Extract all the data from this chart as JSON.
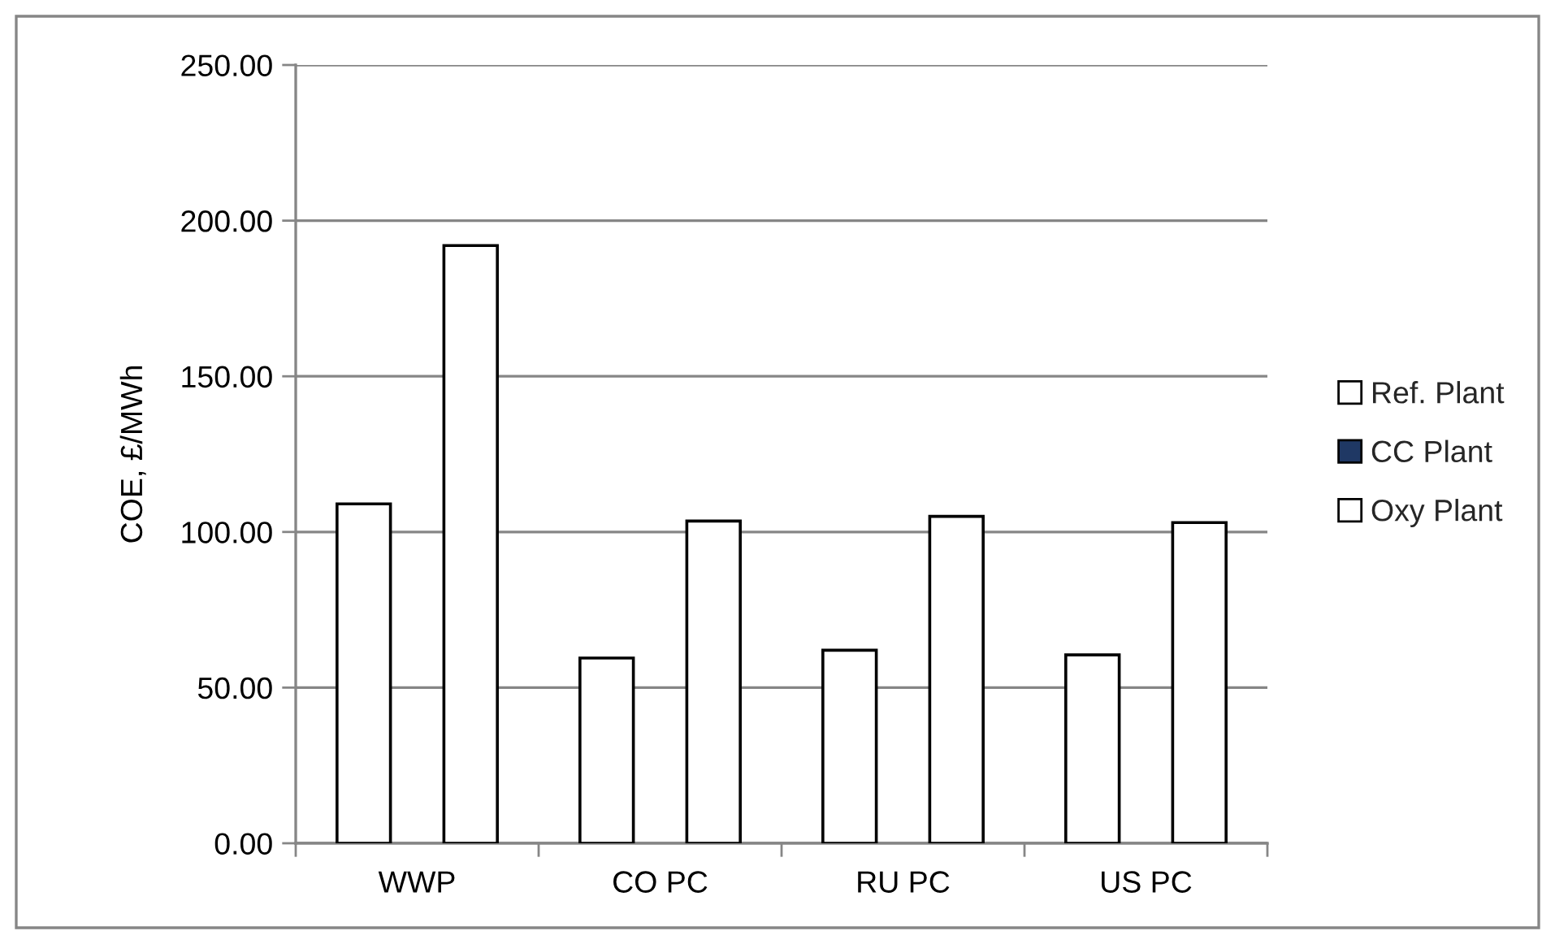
{
  "chart_data": {
    "type": "bar",
    "ylabel": "COE, £/MWh",
    "categories": [
      "WWP",
      "CO PC",
      "RU PC",
      "US PC"
    ],
    "series": [
      {
        "name": "Ref. Plant",
        "color": "#ffffff",
        "values": [
          109,
          59.5,
          62,
          60.5
        ]
      },
      {
        "name": "CC Plant",
        "color": "#1f3864",
        "values": [
          null,
          null,
          null,
          null
        ]
      },
      {
        "name": "Oxy Plant",
        "color": "#ffffff",
        "values": [
          192,
          103.5,
          105,
          103
        ]
      }
    ],
    "ylim": [
      0,
      250
    ],
    "yticks": [
      {
        "value": 0,
        "label": "0.00"
      },
      {
        "value": 50,
        "label": "50.00"
      },
      {
        "value": 100,
        "label": "100.00"
      },
      {
        "value": 150,
        "label": "150.00"
      },
      {
        "value": 200,
        "label": "200.00"
      },
      {
        "value": 250,
        "label": "250.00"
      }
    ],
    "grid": "y",
    "legend": "right"
  }
}
